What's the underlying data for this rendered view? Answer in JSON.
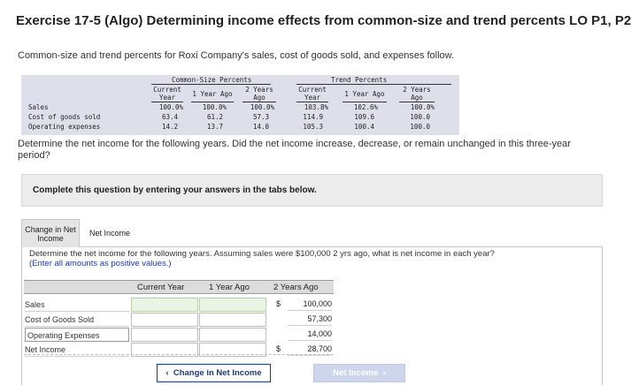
{
  "title": "Exercise 17-5 (Algo) Determining income effects from common-size and trend percents LO P1, P2",
  "intro": "Common-size and trend percents for Roxi Company's sales, cost of goods sold, and expenses follow.",
  "given_table": {
    "group1": "Common-Size Percents",
    "group2": "Trend Percents",
    "col_current": [
      "Current",
      "Year"
    ],
    "col_1yr": "1 Year Ago",
    "col_2yr": [
      "2 Years",
      "Ago"
    ],
    "rows": [
      {
        "label": "Sales",
        "cs": [
          "100.0%",
          "100.0%",
          "100.0%"
        ],
        "tr": [
          "103.8%",
          "102.6%",
          "100.0%"
        ]
      },
      {
        "label": "Cost of goods sold",
        "cs": [
          "63.4",
          "61.2",
          "57.3"
        ],
        "tr": [
          "114.9",
          "109.6",
          "100.0"
        ]
      },
      {
        "label": "Operating expenses",
        "cs": [
          "14.2",
          "13.7",
          "14.0"
        ],
        "tr": [
          "105.3",
          "100.4",
          "100.0"
        ]
      }
    ]
  },
  "question": "Determine the net income for the following years. Did the net income increase, decrease, or remain unchanged in this three-year period?",
  "complete_prompt": "Complete this question by entering your answers in the tabs below.",
  "tabs": {
    "tab1": [
      "Change in Net",
      "Income"
    ],
    "tab2": "Net Income"
  },
  "instruction_main": "Determine the net income for the following years. Assuming sales were $100,000 2 yrs ago, what is net income in each year?",
  "instruction_note": "(Enter all amounts as positive values.)",
  "answer_table": {
    "headers": [
      "Current Year",
      "1 Year Ago",
      "2 Years Ago"
    ],
    "rows": [
      {
        "label": "Sales",
        "current": "",
        "one": "",
        "dollar": "$",
        "two": "100,000"
      },
      {
        "label": "Cost of Goods Sold",
        "current": "",
        "one": "",
        "dollar": "",
        "two": "57,300"
      },
      {
        "label": "Operating Expenses",
        "current": "",
        "one": "",
        "dollar": "",
        "two": "14,000"
      },
      {
        "label": "Net Income",
        "current": "",
        "one": "",
        "dollar": "$",
        "two": "28,700"
      }
    ]
  },
  "buttons": {
    "prev": "Change in Net Income",
    "next": "Net Income"
  }
}
